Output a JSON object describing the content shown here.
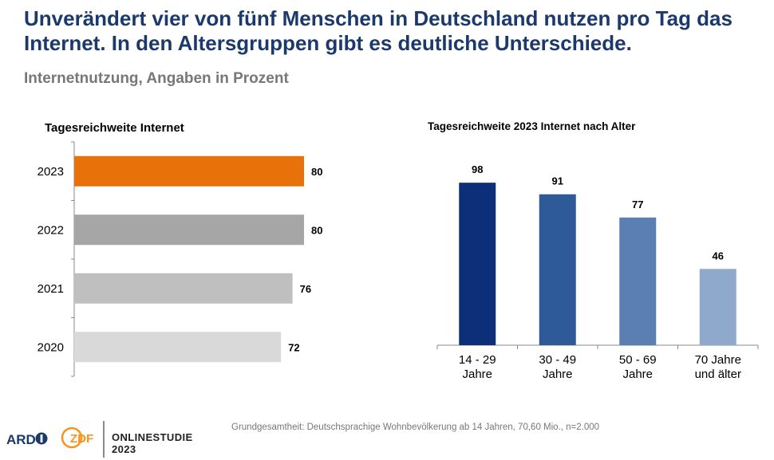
{
  "headline": "Unverändert vier von fünf Menschen in Deutschland nutzen pro Tag das Internet. In den Altersgruppen gibt es deutliche Unterschiede.",
  "subtitle": "Internetnutzung, Angaben in Prozent",
  "footnote": "Grundgesamtheit: Deutschsprachige Wohnbevölkerung ab 14 Jahren, 70,60 Mio., n=2.000",
  "logos": {
    "ard": "ARD",
    "zdf": "ZDF"
  },
  "study": {
    "line1": "ONLINESTUDIE",
    "line2": "2023"
  },
  "colors": {
    "headline": "#1b3a6b",
    "left_bars": [
      "#e8710a",
      "#a6a6a6",
      "#bfbfbf",
      "#d9d9d9"
    ],
    "right_bars": [
      "#0d2f7a",
      "#2e5a99",
      "#5c7fb3",
      "#8fa9cc"
    ]
  },
  "chart_data": [
    {
      "type": "bar",
      "orientation": "horizontal",
      "title": "Tagesreichweite Internet",
      "categories": [
        "2023",
        "2022",
        "2021",
        "2020"
      ],
      "values": [
        80,
        80,
        76,
        72
      ],
      "xlim": [
        0,
        100
      ],
      "grid": false
    },
    {
      "type": "bar",
      "orientation": "vertical",
      "title": "Tagesreichweite 2023 Internet nach Alter",
      "categories": [
        [
          "14 - 29",
          "Jahre"
        ],
        [
          "30 - 49",
          "Jahre"
        ],
        [
          "50 - 69",
          "Jahre"
        ],
        [
          "70 Jahre",
          "und älter"
        ]
      ],
      "values": [
        98,
        91,
        77,
        46
      ],
      "ylim": [
        0,
        100
      ],
      "grid": false
    }
  ]
}
